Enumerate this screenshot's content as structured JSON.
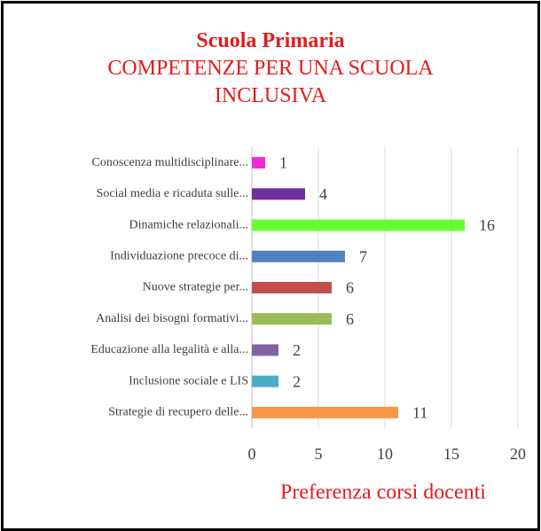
{
  "chart_data": {
    "type": "bar",
    "orientation": "horizontal",
    "title": "Scuola Primaria",
    "subtitle": "COMPETENZE PER UNA SCUOLA INCLUSIVA",
    "x_label": "Preferenza corsi docenti",
    "categories": [
      "Conoscenza multidisciplinare...",
      "Social media  e ricaduta sulle...",
      "Dinamiche relazionali...",
      "Individuazione precoce di...",
      "Nuove strategie per...",
      "Analisi dei bisogni formativi...",
      "Educazione alla legalità e alla...",
      "Inclusione sociale e LIS",
      "Strategie di recupero delle..."
    ],
    "values": [
      1,
      4,
      16,
      7,
      6,
      6,
      2,
      2,
      11
    ],
    "colors": [
      "#f02bd6",
      "#7030a0",
      "#66ff33",
      "#4f81bd",
      "#c0504d",
      "#9bbb59",
      "#8064a2",
      "#4bacc6",
      "#f79646"
    ],
    "xlim": [
      0,
      20
    ],
    "xticks": [
      0,
      5,
      10,
      15,
      20
    ],
    "grid": true
  }
}
